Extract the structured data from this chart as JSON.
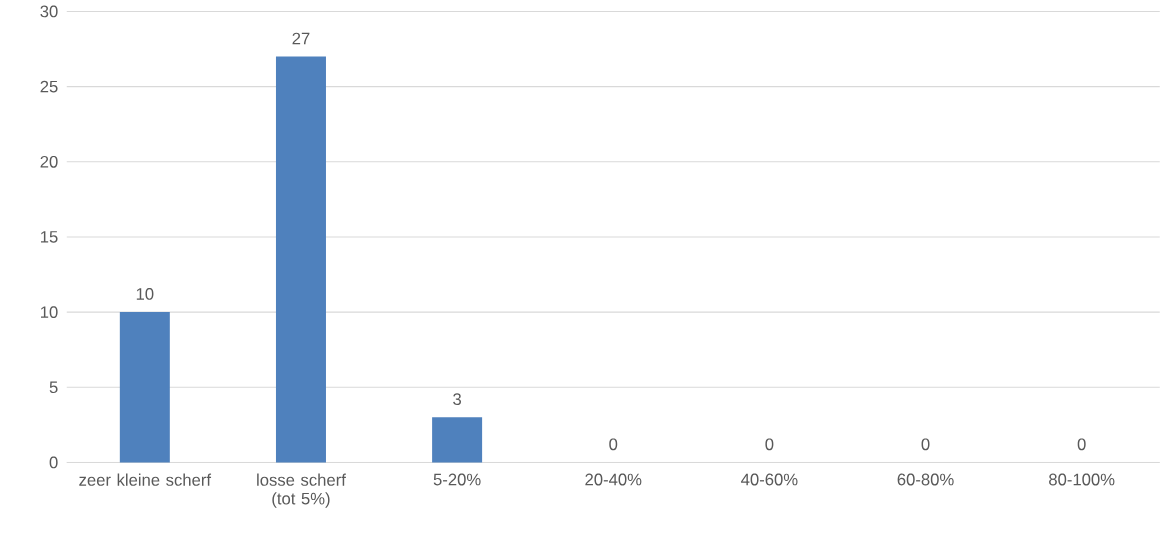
{
  "chart_data": {
    "type": "bar",
    "categories": [
      "zeer kleine scherf",
      "losse scherf (tot 5%)",
      "5-20%",
      "20-40%",
      "40-60%",
      "60-80%",
      "80-100%"
    ],
    "values": [
      10,
      27,
      3,
      0,
      0,
      0,
      0
    ],
    "color": "#4f81bd",
    "ylim": [
      0,
      30
    ],
    "yticks": [
      0,
      5,
      10,
      15,
      20,
      25,
      30
    ],
    "grid": "y",
    "data_labels": true
  }
}
